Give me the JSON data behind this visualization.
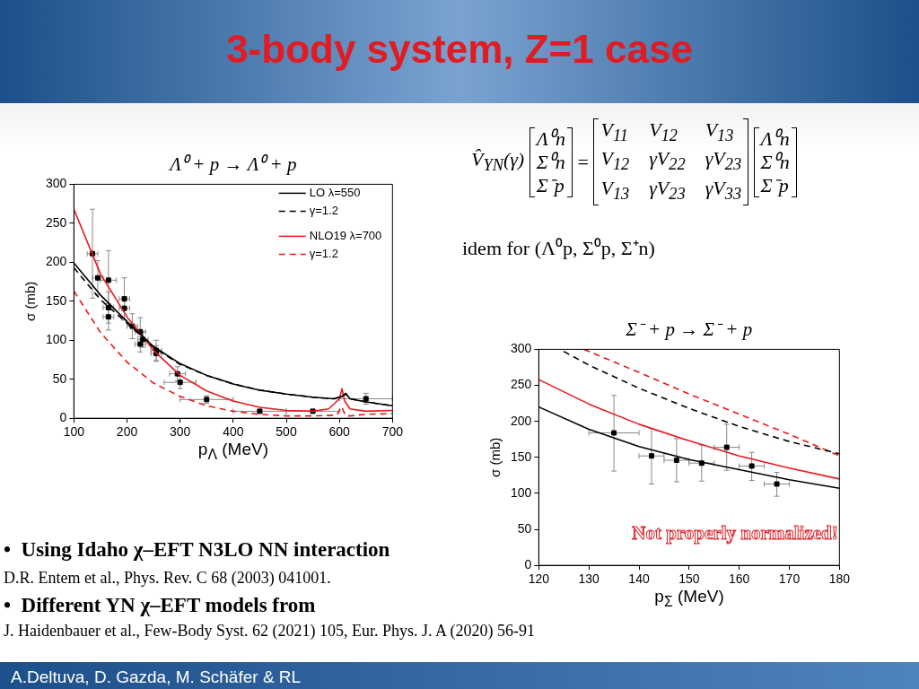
{
  "chart_data": [
    {
      "type": "line",
      "title": "Λ⁰ + p → Λ⁰ + p",
      "xlabel": "p$_{Λ}$ (MeV)",
      "ylabel": "σ (mb)",
      "xlim": [
        100,
        700
      ],
      "xticks": [
        100,
        200,
        300,
        400,
        500,
        600,
        700
      ],
      "ylim": [
        0,
        300
      ],
      "yticks": [
        0,
        50,
        100,
        150,
        200,
        250,
        300
      ],
      "legend": "top right",
      "series": [
        {
          "name": "LO λ=550",
          "color": "#000000",
          "type": "line",
          "x": [
            100,
            150,
            200,
            250,
            300,
            350,
            400,
            450,
            500,
            550,
            590,
            605,
            612,
            620,
            650,
            700
          ],
          "values": [
            199,
            158,
            124,
            92,
            70,
            55,
            44,
            36,
            31,
            27,
            25,
            28,
            32,
            25,
            21,
            16
          ]
        },
        {
          "name": "γ=1.2",
          "color": "#000000",
          "type": "line",
          "line_style": "dashed",
          "x": [
            100,
            150,
            200,
            250,
            300,
            350,
            400,
            450,
            500,
            550,
            590,
            605,
            612,
            620,
            650,
            700
          ],
          "values": [
            193,
            152,
            122,
            91,
            69,
            55,
            44,
            36,
            31,
            27,
            25,
            28,
            31,
            25,
            21,
            16
          ]
        },
        {
          "name": "NLO19 λ=700",
          "color": "#e8191c",
          "type": "line",
          "x": [
            100,
            150,
            200,
            250,
            300,
            350,
            400,
            450,
            500,
            550,
            580,
            600,
            605,
            610,
            620,
            650,
            700
          ],
          "values": [
            268,
            185,
            130,
            87,
            55,
            35,
            22,
            14,
            10,
            9,
            12,
            25,
            38,
            22,
            12,
            9,
            10
          ]
        },
        {
          "name": "γ=1.2",
          "color": "#e8191c",
          "type": "line",
          "line_style": "dashed",
          "x": [
            100,
            150,
            200,
            250,
            300,
            350,
            400,
            450,
            500,
            550,
            595,
            604,
            612,
            620,
            650,
            700
          ],
          "values": [
            163,
            110,
            72,
            45,
            28,
            16,
            9,
            5,
            3,
            3,
            4,
            15,
            3,
            3,
            5,
            6
          ]
        },
        {
          "type": "scatter",
          "marker": "square",
          "color": "#000000",
          "x": [
            135,
            145,
            165,
            165,
            165,
            195,
            195,
            210,
            225,
            230,
            225,
            255,
            255,
            295,
            300,
            350,
            450,
            550,
            650
          ],
          "values": [
            211,
            180,
            177,
            142,
            130,
            153,
            141,
            118,
            111,
            101,
            95,
            87,
            83,
            57,
            46,
            24,
            9,
            9,
            25
          ],
          "errors": [
            57,
            22,
            38,
            20,
            17,
            27,
            15,
            16,
            18,
            10,
            10,
            13,
            10,
            9,
            8,
            5,
            2,
            2,
            7
          ],
          "xerrors": [
            10,
            10,
            15,
            10,
            10,
            10,
            10,
            10,
            10,
            10,
            10,
            10,
            10,
            15,
            30,
            50,
            50,
            50,
            50
          ]
        }
      ]
    },
    {
      "type": "line",
      "title": "Σ⁻ + p → Σ⁻ + p",
      "xlabel": "p$_{Σ}$ (MeV)",
      "ylabel": "σ (mb)",
      "xlim": [
        120,
        180
      ],
      "xticks": [
        120,
        130,
        140,
        150,
        160,
        170,
        180
      ],
      "ylim": [
        0,
        300
      ],
      "yticks": [
        0,
        50,
        100,
        150,
        200,
        250,
        300
      ],
      "annotations": [
        "Not properly normalized!"
      ],
      "series": [
        {
          "color": "#000000",
          "type": "line",
          "x": [
            120,
            130,
            140,
            150,
            160,
            170,
            180
          ],
          "values": [
            220,
            189,
            165,
            147,
            133,
            119,
            107
          ]
        },
        {
          "color": "#000000",
          "type": "line",
          "line_style": "dashed",
          "x": [
            125,
            130,
            140,
            150,
            160,
            170,
            180
          ],
          "values": [
            297,
            278,
            246,
            218,
            193,
            172,
            155
          ]
        },
        {
          "color": "#e8191c",
          "type": "line",
          "x": [
            120,
            130,
            140,
            150,
            160,
            170,
            180
          ],
          "values": [
            258,
            224,
            196,
            173,
            152,
            135,
            120
          ]
        },
        {
          "color": "#e8191c",
          "type": "line",
          "line_style": "dashed",
          "x": [
            129,
            140,
            150,
            160,
            170,
            180
          ],
          "values": [
            300,
            268,
            238,
            210,
            182,
            152
          ]
        },
        {
          "type": "scatter",
          "marker": "square",
          "color": "#000000",
          "x": [
            135,
            142.5,
            147.5,
            152.5,
            157.5,
            162.5,
            167.5
          ],
          "values": [
            184,
            152,
            146,
            142,
            164,
            138,
            113
          ],
          "errors": [
            [
              131,
              236
            ],
            [
              113,
              190
            ],
            [
              116,
              176
            ],
            [
              117,
              167
            ],
            [
              132,
              196
            ],
            [
              118,
              157
            ],
            [
              96,
              129
            ]
          ],
          "xerrors": [
            5,
            2.5,
            2.5,
            2.5,
            2.5,
            2.5,
            2.5
          ]
        }
      ]
    },
    {
      "type": "other",
      "title": "3-body system, Z=1 case",
      "annotations": [
        "V̂$_{YN}$(γ)",
        "Λ⁰n",
        "Σ⁰n",
        "Σ⁻p",
        "=",
        "V$_{11}$",
        "V$_{12}$",
        "V$_{13}$",
        "V$_{12}$",
        "γV$_{22}$",
        "γV$_{23}$",
        "V$_{13}$",
        "γV$_{23}$",
        "γV$_{33}$",
        "Λ⁰n",
        "Σ⁰n",
        "Σ⁻p",
        "idem for (Λ⁰p, Σ⁰p, Σ⁺n)",
        "•  Using Idaho χ–EFT N3LO NN interaction",
        "D.R. Entem et al., Phys. Rev. C 68 (2003) 041001.",
        "•  Different YN χ–EFT models from",
        "J. Haidenbauer et al., Few-Body Syst. 62 (2021) 105, Eur. Phys. J. A (2020) 56-91",
        "A.Deltuva, D. Gazda, M. Schäfer & RL"
      ]
    }
  ]
}
